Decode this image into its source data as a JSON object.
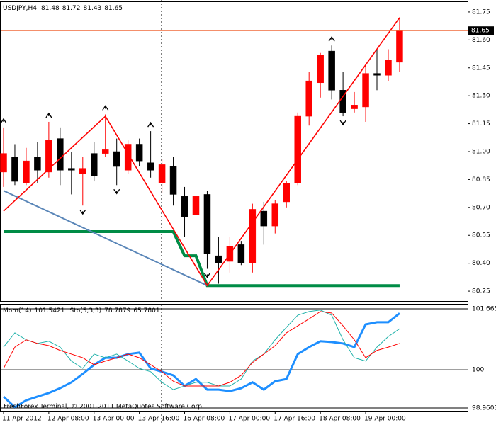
{
  "chart_data": {
    "type": "candlestick",
    "symbol": "USDJPY,H4",
    "categories": [
      "11 Apr 2012",
      null,
      null,
      null,
      "12 Apr 08:00",
      null,
      null,
      null,
      "13 Apr 00:00",
      null,
      null,
      null,
      "13 Apr 16:00",
      null,
      null,
      null,
      "16 Apr 08:00",
      null,
      null,
      null,
      "17 Apr 00:00",
      null,
      null,
      null,
      "17 Apr 16:00",
      null,
      null,
      null,
      "18 Apr 08:00",
      null,
      null,
      null,
      "19 Apr 00:00",
      null,
      null,
      null
    ],
    "open": [
      80.89,
      80.97,
      80.83,
      80.97,
      80.89,
      81.07,
      80.91,
      80.88,
      80.99,
      80.99,
      81.0,
      80.9,
      81.04,
      80.94,
      80.83,
      80.92,
      80.76,
      80.66,
      80.77,
      80.44,
      80.41,
      80.5,
      80.4,
      80.68,
      80.6,
      80.73,
      80.83,
      81.19,
      81.37,
      81.54,
      81.33,
      81.23,
      81.24,
      81.42,
      81.41,
      81.48
    ],
    "high": [
      81.13,
      81.04,
      81.02,
      81.05,
      81.16,
      81.13,
      81.0,
      80.97,
      81.05,
      81.2,
      81.07,
      81.06,
      81.07,
      81.11,
      80.96,
      80.97,
      80.81,
      80.81,
      80.79,
      80.54,
      80.54,
      80.52,
      80.72,
      80.73,
      80.74,
      80.84,
      81.21,
      81.43,
      81.53,
      81.57,
      81.43,
      81.32,
      81.47,
      81.55,
      81.55,
      81.72
    ],
    "low": [
      80.81,
      80.82,
      80.82,
      80.83,
      80.86,
      80.82,
      80.77,
      80.71,
      80.84,
      80.97,
      80.82,
      80.88,
      80.92,
      80.86,
      80.78,
      80.71,
      80.54,
      80.64,
      80.37,
      80.29,
      80.35,
      80.39,
      80.35,
      80.5,
      80.56,
      80.7,
      80.82,
      81.14,
      81.29,
      81.28,
      81.19,
      81.21,
      81.16,
      81.33,
      81.38,
      81.43
    ],
    "close": [
      80.99,
      80.84,
      80.95,
      80.9,
      81.06,
      80.9,
      80.9,
      80.91,
      80.87,
      81.01,
      80.92,
      81.04,
      80.95,
      80.9,
      80.93,
      80.77,
      80.65,
      80.76,
      80.45,
      80.4,
      80.49,
      80.4,
      80.69,
      80.6,
      80.72,
      80.83,
      81.19,
      81.38,
      81.52,
      81.33,
      81.21,
      81.25,
      81.42,
      81.41,
      81.49,
      81.65
    ],
    "up_color": "#ff0000",
    "down_color": "#000000",
    "price_line_color": "#f06a3a",
    "ylim": [
      80.197,
      81.803
    ],
    "yticks": [
      80.25,
      {
        "value": 80.4,
        "label": "80.40"
      },
      80.55,
      {
        "value": 80.7,
        "label": "80.70"
      },
      80.85,
      {
        "value": 81.0,
        "label": "81.00"
      },
      81.15,
      {
        "value": 81.3,
        "label": "81.30"
      },
      81.45,
      {
        "value": 81.6,
        "label": "81.60"
      },
      81.75
    ],
    "zigzag": {
      "color": "#ff0000",
      "bars": [
        0,
        9,
        18,
        35
      ],
      "values": [
        80.68,
        81.19,
        80.28,
        81.72
      ]
    },
    "trendline": {
      "color": "#5a86b8",
      "bars": [
        0,
        18
      ],
      "values": [
        80.79,
        80.28
      ]
    },
    "stop_line": {
      "color": "#008c46",
      "values": [
        80.57,
        80.57,
        80.57,
        80.57,
        80.57,
        80.57,
        80.57,
        80.57,
        80.57,
        80.57,
        80.57,
        80.57,
        80.57,
        80.57,
        80.57,
        80.57,
        80.44,
        80.44,
        80.28,
        80.28,
        80.28,
        80.28,
        80.28,
        80.28,
        80.28,
        80.28,
        80.28,
        80.28,
        80.28,
        80.28,
        80.28,
        80.28,
        80.28,
        80.28,
        80.28,
        80.28
      ]
    },
    "fractals_up": [
      0,
      4,
      9,
      13,
      29
    ],
    "fractals_down": [
      7,
      10,
      18,
      30
    ],
    "indicator": {
      "mom_label": "Mom(14)",
      "stoch_label": "Sto(5,3,3)",
      "stoch_main_value": 78.7879,
      "stoch_signal_value": 65.7801,
      "ylim": [
        98.9603,
        101.665
      ],
      "yticks": [
        98.9603,
        100,
        101.665
      ],
      "series": [
        {
          "color": "#1e8fff",
          "width": 3,
          "values": [
            99.27,
            98.98,
            99.17,
            99.27,
            99.37,
            99.5,
            99.66,
            99.89,
            100.14,
            100.33,
            100.33,
            100.43,
            100.47,
            100.04,
            99.95,
            99.85,
            99.56,
            99.75,
            99.46,
            99.46,
            99.42,
            99.5,
            99.66,
            99.46,
            99.69,
            99.75,
            100.43,
            100.62,
            100.78,
            100.76,
            100.72,
            100.62,
            101.24,
            101.3,
            101.3,
            101.5421
          ]
        },
        {
          "color": "#20b2aa",
          "width": 1,
          "values": [
            100.62,
            101.01,
            100.82,
            100.72,
            100.78,
            100.62,
            100.24,
            100.04,
            100.43,
            100.33,
            100.43,
            100.24,
            100.04,
            99.95,
            99.66,
            99.46,
            99.56,
            99.66,
            99.66,
            99.56,
            99.56,
            99.75,
            100.24,
            100.43,
            100.82,
            101.16,
            101.49,
            101.59,
            101.63,
            101.49,
            100.82,
            100.33,
            100.24,
            100.62,
            100.91,
            101.12
          ]
        },
        {
          "color": "#ff0000",
          "width": 1,
          "values": [
            100.04,
            100.62,
            100.82,
            100.72,
            100.66,
            100.53,
            100.43,
            100.33,
            100.14,
            100.24,
            100.33,
            100.43,
            100.33,
            100.14,
            99.95,
            99.69,
            99.56,
            99.56,
            99.56,
            99.56,
            99.66,
            99.85,
            100.2,
            100.43,
            100.66,
            101.01,
            101.2,
            101.39,
            101.59,
            101.55,
            101.2,
            100.82,
            100.33,
            100.53,
            100.62,
            100.72
          ]
        }
      ]
    },
    "footer": "FreshForex Terminal, © 2001-2011 MetaQuotes Software Corp."
  }
}
